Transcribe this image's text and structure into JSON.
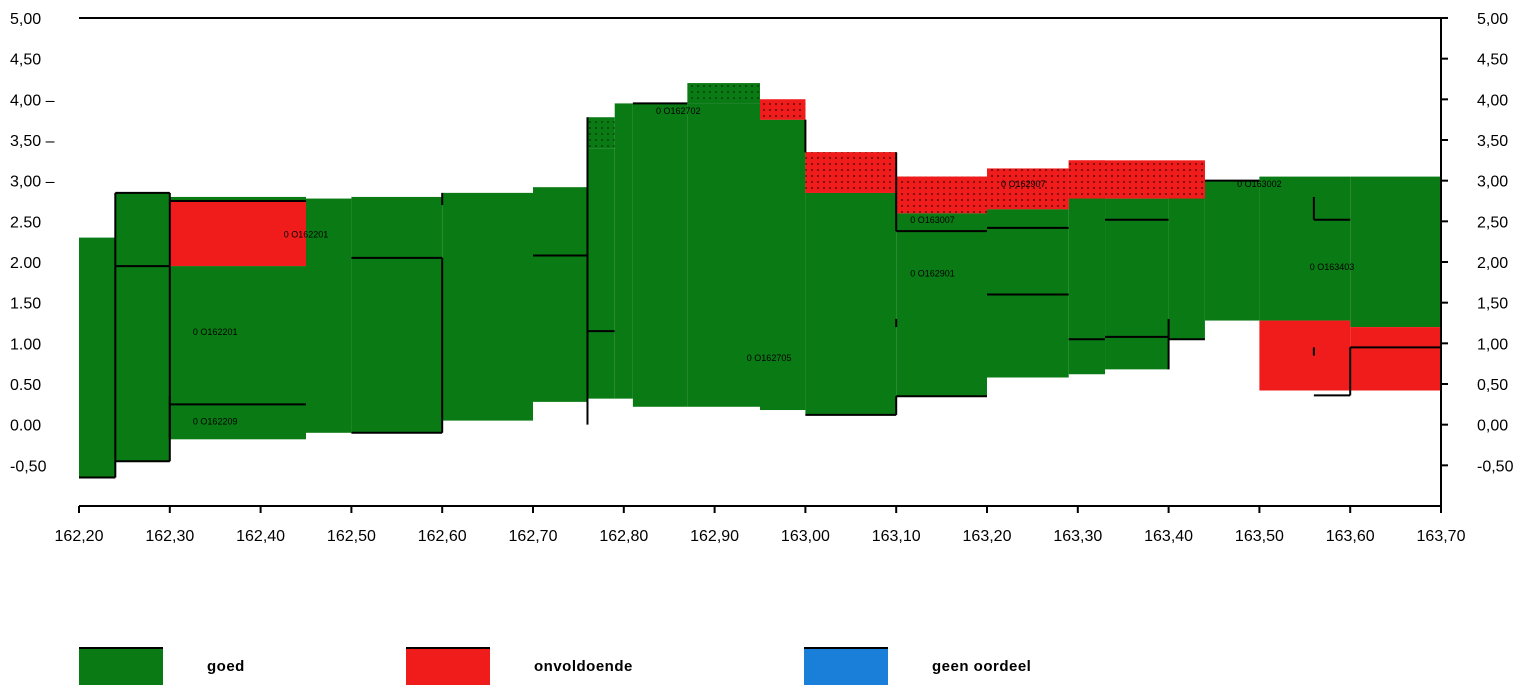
{
  "chart_data": {
    "type": "area",
    "xlim": [
      162.2,
      163.7
    ],
    "ylim": [
      -1.0,
      5.0
    ],
    "x_ticks": [
      {
        "v": 162.2,
        "label": "162,20"
      },
      {
        "v": 162.3,
        "label": "162,30"
      },
      {
        "v": 162.4,
        "label": "162,40"
      },
      {
        "v": 162.5,
        "label": "162,50"
      },
      {
        "v": 162.6,
        "label": "162,60"
      },
      {
        "v": 162.7,
        "label": "162,70"
      },
      {
        "v": 162.8,
        "label": "162,80"
      },
      {
        "v": 162.9,
        "label": "162,90"
      },
      {
        "v": 163.0,
        "label": "163,00"
      },
      {
        "v": 163.1,
        "label": "163,10"
      },
      {
        "v": 163.2,
        "label": "163,20"
      },
      {
        "v": 163.3,
        "label": "163,30"
      },
      {
        "v": 163.4,
        "label": "163,40"
      },
      {
        "v": 163.5,
        "label": "163,50"
      },
      {
        "v": 163.6,
        "label": "163,60"
      },
      {
        "v": 163.7,
        "label": "163,70"
      }
    ],
    "y_ticks_left": [
      {
        "v": 5.0,
        "label": "5,00"
      },
      {
        "v": 4.5,
        "label": "4,50"
      },
      {
        "v": 4.0,
        "label": "4,00 –"
      },
      {
        "v": 3.5,
        "label": "3,50 –"
      },
      {
        "v": 3.0,
        "label": "3,00 –"
      },
      {
        "v": 2.5,
        "label": "2.50"
      },
      {
        "v": 2.0,
        "label": "2.00"
      },
      {
        "v": 1.5,
        "label": "1.50"
      },
      {
        "v": 1.0,
        "label": "1.00"
      },
      {
        "v": 0.5,
        "label": "0.50"
      },
      {
        "v": 0.0,
        "label": "0.00"
      },
      {
        "v": -0.5,
        "label": "-0,50"
      }
    ],
    "y_ticks_right": [
      {
        "v": 5.0,
        "label": "5,00"
      },
      {
        "v": 4.5,
        "label": "4,50"
      },
      {
        "v": 4.0,
        "label": "4,00"
      },
      {
        "v": 3.5,
        "label": "3,50"
      },
      {
        "v": 3.0,
        "label": "3,00"
      },
      {
        "v": 2.5,
        "label": "2,50"
      },
      {
        "v": 2.0,
        "label": "2,00"
      },
      {
        "v": 1.5,
        "label": "1,50"
      },
      {
        "v": 1.0,
        "label": "1,00"
      },
      {
        "v": 0.5,
        "label": "0,50"
      },
      {
        "v": 0.0,
        "label": "0,00"
      },
      {
        "v": -0.5,
        "label": "-0,50"
      }
    ],
    "series": [
      {
        "name": "goed",
        "color": "#0a7a14",
        "blocks": [
          {
            "x0": 162.2,
            "x1": 162.24,
            "y0": -0.65,
            "y1": 2.3
          },
          {
            "x0": 162.24,
            "x1": 162.3,
            "y0": -0.45,
            "y1": 2.85
          },
          {
            "x0": 162.3,
            "x1": 162.45,
            "y0": -0.18,
            "y1": 1.95
          },
          {
            "x0": 162.3,
            "x1": 162.45,
            "y0": 2.75,
            "y1": 2.8
          },
          {
            "x0": 162.45,
            "x1": 162.5,
            "y0": -0.1,
            "y1": 2.78
          },
          {
            "x0": 162.5,
            "x1": 162.6,
            "y0": -0.1,
            "y1": 2.8
          },
          {
            "x0": 162.6,
            "x1": 162.7,
            "y0": 0.05,
            "y1": 2.85
          },
          {
            "x0": 162.7,
            "x1": 162.76,
            "y0": 0.28,
            "y1": 2.92
          },
          {
            "x0": 162.76,
            "x1": 162.79,
            "y0": 0.32,
            "y1": 3.4
          },
          {
            "x0": 162.79,
            "x1": 162.81,
            "y0": 0.32,
            "y1": 3.95
          },
          {
            "x0": 162.81,
            "x1": 162.87,
            "y0": 0.22,
            "y1": 3.95
          },
          {
            "x0": 162.87,
            "x1": 162.95,
            "y0": 0.22,
            "y1": 3.95
          },
          {
            "x0": 162.95,
            "x1": 163.0,
            "y0": 0.18,
            "y1": 3.75
          },
          {
            "x0": 163.0,
            "x1": 163.1,
            "y0": 0.12,
            "y1": 2.85
          },
          {
            "x0": 163.1,
            "x1": 163.2,
            "y0": 0.35,
            "y1": 2.6
          },
          {
            "x0": 163.2,
            "x1": 163.29,
            "y0": 0.58,
            "y1": 2.65
          },
          {
            "x0": 163.29,
            "x1": 163.33,
            "y0": 0.62,
            "y1": 2.8
          },
          {
            "x0": 163.33,
            "x1": 163.4,
            "y0": 0.68,
            "y1": 2.78
          },
          {
            "x0": 163.4,
            "x1": 163.44,
            "y0": 1.05,
            "y1": 2.82
          },
          {
            "x0": 163.44,
            "x1": 163.5,
            "y0": 1.28,
            "y1": 3.0
          },
          {
            "x0": 163.5,
            "x1": 163.6,
            "y0": 1.28,
            "y1": 3.05
          },
          {
            "x0": 163.6,
            "x1": 163.7,
            "y0": 1.2,
            "y1": 3.05
          }
        ]
      },
      {
        "name": "onvoldoende",
        "color": "#f01c1c",
        "blocks": [
          {
            "x0": 162.3,
            "x1": 162.45,
            "y0": 1.95,
            "y1": 2.75
          },
          {
            "x0": 162.95,
            "x1": 163.0,
            "y0": 3.75,
            "y1": 4.0
          },
          {
            "x0": 163.0,
            "x1": 163.1,
            "y0": 2.85,
            "y1": 3.35
          },
          {
            "x0": 163.1,
            "x1": 163.2,
            "y0": 2.6,
            "y1": 3.05
          },
          {
            "x0": 163.2,
            "x1": 163.29,
            "y0": 2.65,
            "y1": 3.15
          },
          {
            "x0": 163.29,
            "x1": 163.33,
            "y0": 2.8,
            "y1": 3.25
          },
          {
            "x0": 163.33,
            "x1": 163.4,
            "y0": 2.78,
            "y1": 3.22
          },
          {
            "x0": 163.4,
            "x1": 163.44,
            "y0": 2.82,
            "y1": 3.22
          },
          {
            "x0": 163.5,
            "x1": 163.6,
            "y0": 0.42,
            "y1": 1.28
          },
          {
            "x0": 163.6,
            "x1": 163.7,
            "y0": 0.42,
            "y1": 1.2
          }
        ]
      },
      {
        "name": "geen oordeel",
        "color": "#1a7fd8",
        "blocks": []
      }
    ],
    "dotted_blocks": [
      {
        "x0": 162.76,
        "x1": 162.79,
        "y0": 3.4,
        "y1": 3.78,
        "color": "#0a7a14"
      },
      {
        "x0": 162.87,
        "x1": 162.95,
        "y0": 3.95,
        "y1": 4.2,
        "color": "#0a7a14"
      },
      {
        "x0": 162.95,
        "x1": 163.0,
        "y0": 3.75,
        "y1": 4.0,
        "color": "#f01c1c"
      },
      {
        "x0": 163.0,
        "x1": 163.1,
        "y0": 2.85,
        "y1": 3.35,
        "color": "#f01c1c"
      },
      {
        "x0": 163.1,
        "x1": 163.2,
        "y0": 2.6,
        "y1": 3.05,
        "color": "#f01c1c"
      },
      {
        "x0": 163.2,
        "x1": 163.29,
        "y0": 2.65,
        "y1": 3.15,
        "color": "#f01c1c"
      },
      {
        "x0": 163.29,
        "x1": 163.44,
        "y0": 2.78,
        "y1": 3.25,
        "color": "#f01c1c"
      }
    ],
    "black_lines": [
      {
        "x0": 162.24,
        "x1": 162.3,
        "y": 2.85
      },
      {
        "x0": 162.24,
        "x1": 162.3,
        "y": 1.95
      },
      {
        "x0": 162.2,
        "x1": 162.24,
        "y": -0.65
      },
      {
        "x0": 162.24,
        "x1": 162.3,
        "y": -0.45
      },
      {
        "x0": 162.3,
        "x1": 162.45,
        "y": 2.75
      },
      {
        "x0": 162.3,
        "x1": 162.45,
        "y": 0.25
      },
      {
        "x0": 162.5,
        "x1": 162.6,
        "y": 2.05
      },
      {
        "x0": 162.5,
        "x1": 162.6,
        "y": -0.1
      },
      {
        "x0": 162.7,
        "x1": 162.76,
        "y": 2.08
      },
      {
        "x0": 162.76,
        "x1": 162.79,
        "y": 1.15
      },
      {
        "x0": 162.81,
        "x1": 162.87,
        "y": 3.95
      },
      {
        "x0": 163.0,
        "x1": 163.1,
        "y": 0.12
      },
      {
        "x0": 163.1,
        "x1": 163.2,
        "y": 2.38
      },
      {
        "x0": 163.2,
        "x1": 163.29,
        "y": 2.42
      },
      {
        "x0": 163.2,
        "x1": 163.29,
        "y": 1.6
      },
      {
        "x0": 163.29,
        "x1": 163.33,
        "y": 1.05
      },
      {
        "x0": 163.33,
        "x1": 163.4,
        "y": 1.08
      },
      {
        "x0": 163.33,
        "x1": 163.4,
        "y": 2.52
      },
      {
        "x0": 163.4,
        "x1": 163.44,
        "y": 1.05
      },
      {
        "x0": 163.44,
        "x1": 163.5,
        "y": 3.0
      },
      {
        "x0": 163.56,
        "x1": 163.6,
        "y": 2.52
      },
      {
        "x0": 163.56,
        "x1": 163.6,
        "y": 0.36
      },
      {
        "x0": 163.6,
        "x1": 163.7,
        "y": 0.95
      },
      {
        "x0": 163.1,
        "x1": 163.2,
        "y": 0.35
      }
    ],
    "black_vlines": [
      {
        "x": 162.24,
        "y0": -0.65,
        "y1": 2.85
      },
      {
        "x": 162.3,
        "y0": -0.45,
        "y1": 2.85
      },
      {
        "x": 162.3,
        "y0": -0.18,
        "y1": 0.35
      },
      {
        "x": 162.6,
        "y0": -0.1,
        "y1": 2.05
      },
      {
        "x": 162.6,
        "y0": 2.7,
        "y1": 2.85
      },
      {
        "x": 162.76,
        "y0": 0.0,
        "y1": 3.78
      },
      {
        "x": 163.0,
        "y0": 3.35,
        "y1": 3.75
      },
      {
        "x": 163.1,
        "y0": 0.12,
        "y1": 0.35
      },
      {
        "x": 163.1,
        "y0": 2.38,
        "y1": 3.35
      },
      {
        "x": 163.1,
        "y0": 1.2,
        "y1": 1.3
      },
      {
        "x": 163.4,
        "y0": 0.68,
        "y1": 1.3
      },
      {
        "x": 163.56,
        "y0": 2.52,
        "y1": 2.8
      },
      {
        "x": 163.6,
        "y0": 0.36,
        "y1": 0.95
      },
      {
        "x": 163.56,
        "y0": 0.85,
        "y1": 0.95
      }
    ],
    "segment_labels": [
      {
        "x": 162.45,
        "y": 2.3,
        "text": "0 O162201"
      },
      {
        "x": 162.35,
        "y": 1.1,
        "text": "0 O162201"
      },
      {
        "x": 162.35,
        "y": 0.0,
        "text": "0 O162209"
      },
      {
        "x": 162.86,
        "y": 3.82,
        "text": "0 O162702"
      },
      {
        "x": 162.96,
        "y": 0.78,
        "text": "0 O162705"
      },
      {
        "x": 163.14,
        "y": 2.48,
        "text": "0 O163007"
      },
      {
        "x": 163.14,
        "y": 1.82,
        "text": "0 O162901"
      },
      {
        "x": 163.24,
        "y": 2.92,
        "text": "0 O162907"
      },
      {
        "x": 163.5,
        "y": 2.92,
        "text": "0 O163002"
      },
      {
        "x": 163.58,
        "y": 1.9,
        "text": "0 O163403"
      }
    ]
  },
  "legend": [
    {
      "label": "goed",
      "color": "#0a7a14"
    },
    {
      "label": "onvoldoende",
      "color": "#f01c1c"
    },
    {
      "label": "geen oordeel",
      "color": "#1a7fd8"
    }
  ]
}
